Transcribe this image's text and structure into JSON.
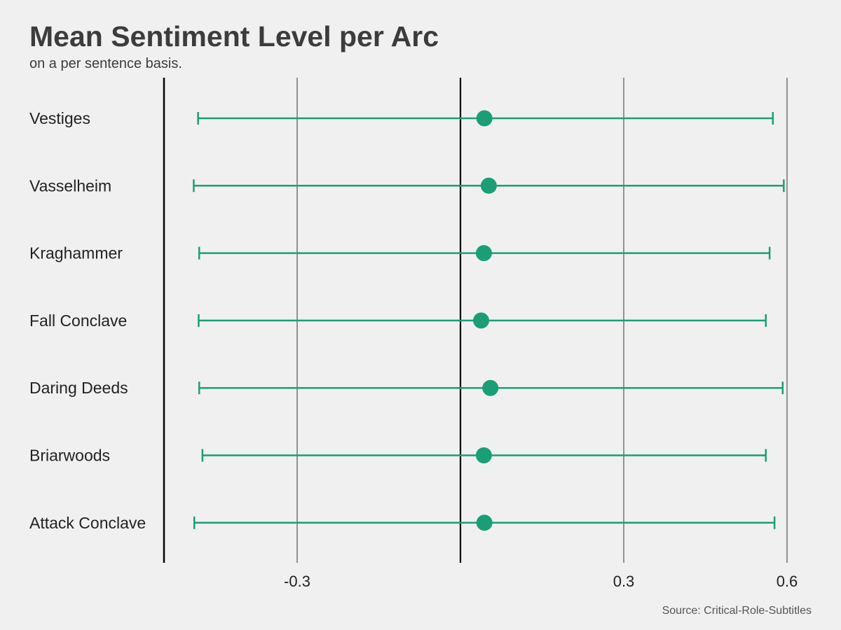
{
  "chart_data": {
    "type": "scatter",
    "title": "Mean Sentiment Level per Arc",
    "subtitle": "on a per sentence basis.",
    "source": "Source: Critical-Role-Subtitles",
    "xlim": [
      -0.5,
      0.6
    ],
    "xticks": [
      -0.3,
      0.3,
      0.6
    ],
    "xtick_labels": [
      "-0.3",
      "0.3",
      "0.6"
    ],
    "reference_lines": [
      0.0
    ],
    "grid": true,
    "colors": {
      "point": "#1b9e77",
      "bar": "#1b9e77",
      "grid": "#7a7a7a",
      "axis": "#000000",
      "background": "#f0f0f0"
    },
    "categories": [
      "Vestiges",
      "Vasselheim",
      "Kraghammer",
      "Fall Conclave",
      "Daring Deeds",
      "Briarwoods",
      "Attack Conclave"
    ],
    "series": [
      {
        "mean": [
          0.044,
          0.052,
          0.043,
          0.038,
          0.055,
          0.043,
          0.044
        ],
        "low": [
          -0.482,
          -0.49,
          -0.48,
          -0.481,
          -0.48,
          -0.474,
          -0.489
        ],
        "high": [
          0.574,
          0.594,
          0.568,
          0.561,
          0.592,
          0.561,
          0.577
        ]
      }
    ]
  }
}
